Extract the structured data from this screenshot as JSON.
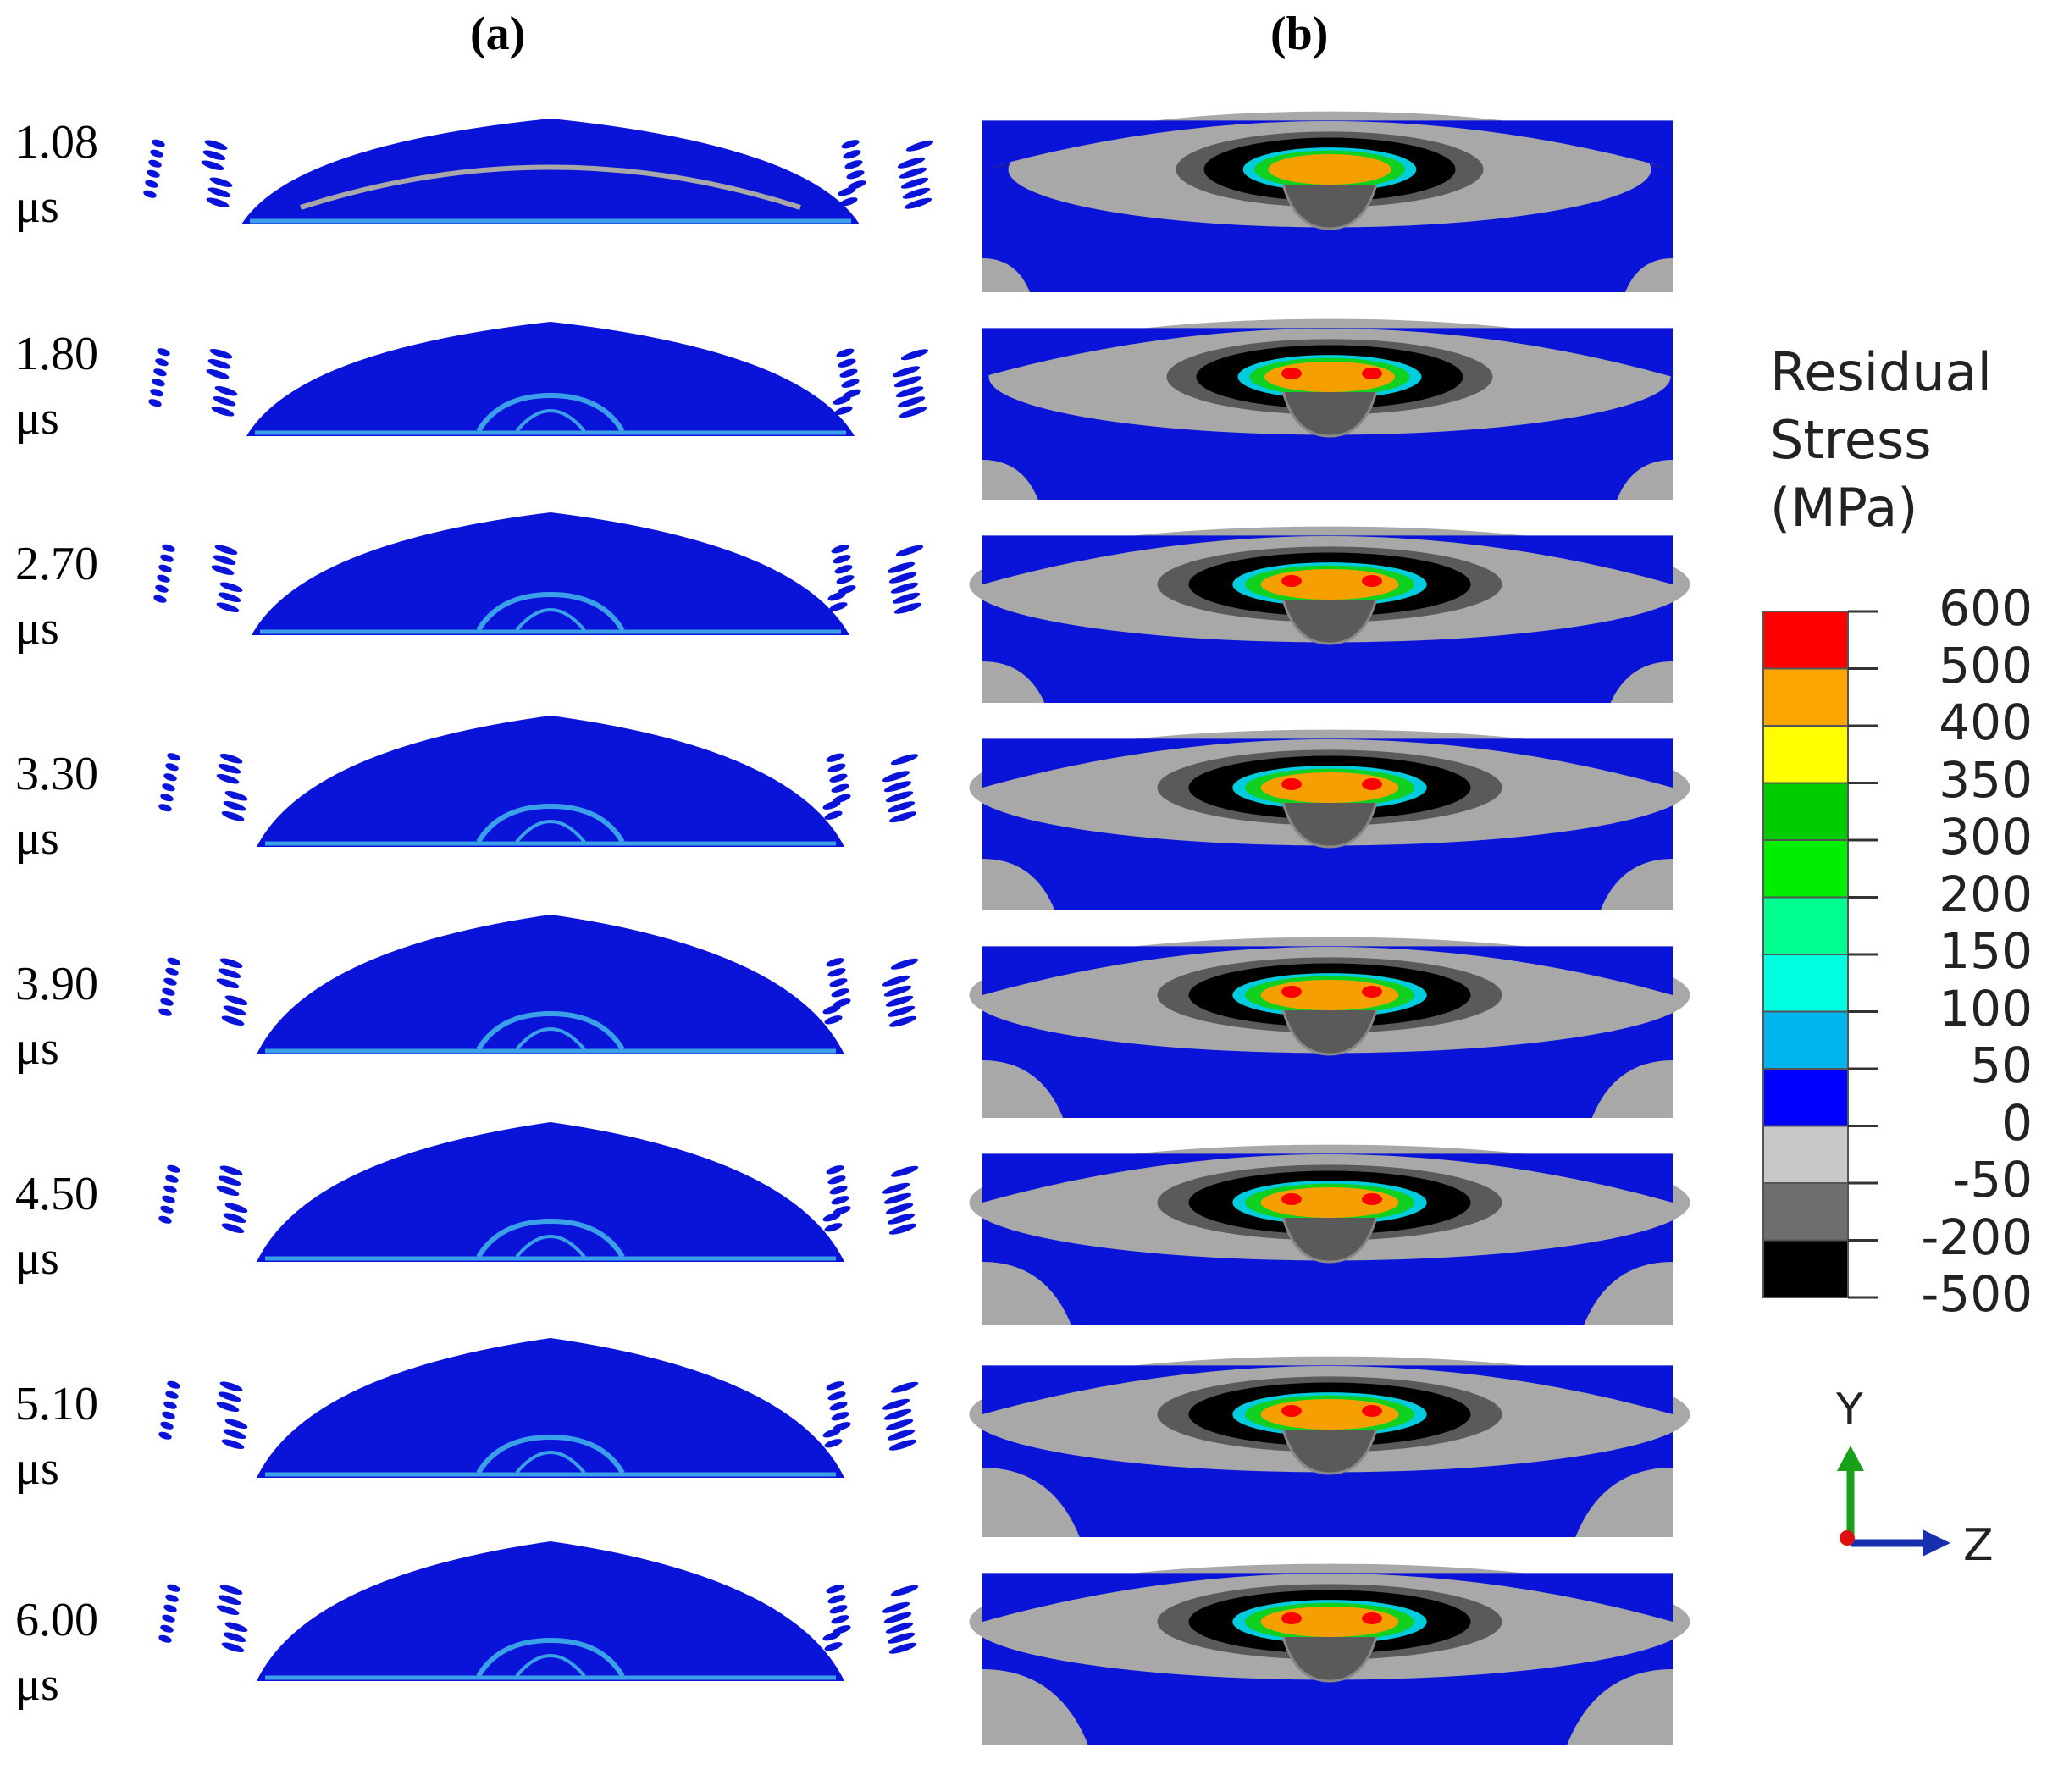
{
  "panels": {
    "a_label": "(a)",
    "b_label": "(b)"
  },
  "time_steps": [
    {
      "value": "1.08",
      "unit": "μs"
    },
    {
      "value": "1.80",
      "unit": "μs"
    },
    {
      "value": "2.70",
      "unit": "μs"
    },
    {
      "value": "3.30",
      "unit": "μs"
    },
    {
      "value": "3.90",
      "unit": "μs"
    },
    {
      "value": "4.50",
      "unit": "μs"
    },
    {
      "value": "5.10",
      "unit": "μs"
    },
    {
      "value": "6.00",
      "unit": "μs"
    }
  ],
  "legend": {
    "title_lines": [
      "Residual",
      "Stress",
      "(MPa)"
    ],
    "ticks": [
      "600",
      "500",
      "400",
      "350",
      "300",
      "200",
      "150",
      "100",
      "50",
      "0",
      "-50",
      "-200",
      "-500"
    ],
    "band_colors": [
      "#ff0000",
      "#ffa500",
      "#ffff00",
      "#00cc00",
      "#00ee00",
      "#00ff90",
      "#00ffe0",
      "#00b4ee",
      "#0000ff",
      "#c8c8c8",
      "#6e6e6e",
      "#000000"
    ]
  },
  "axes": {
    "y_label": "Y",
    "z_label": "Z"
  },
  "colors": {
    "base_blue": "#0a14d8",
    "light_blue": "#3aa0e8",
    "gray_light": "#a8a8a8",
    "gray_dark": "#5a5a5a",
    "black": "#000000",
    "green": "#10d020",
    "orange": "#f5a000",
    "red": "#ff0000",
    "cyan": "#00ccdd"
  }
}
